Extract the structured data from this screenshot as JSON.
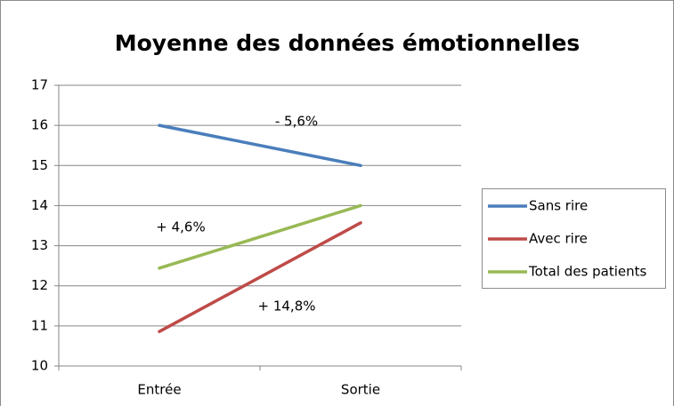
{
  "chart_data": {
    "type": "line",
    "title": "Moyenne des données émotionnelles",
    "categories": [
      "Entrée",
      "Sortie"
    ],
    "series": [
      {
        "name": "Sans rire",
        "color": "#4a7ebb",
        "values": [
          16,
          15
        ]
      },
      {
        "name": "Avec rire",
        "color": "#be4b48",
        "values": [
          10.86,
          13.57
        ]
      },
      {
        "name": "Total des patients",
        "color": "#98b954",
        "values": [
          12.44,
          14
        ]
      }
    ],
    "annotations": [
      "- 5,6%",
      "+ 4,6%",
      "+ 14,8%"
    ],
    "ylim": [
      10,
      17
    ],
    "yticks": [
      10,
      11,
      12,
      13,
      14,
      15,
      16,
      17
    ],
    "grid": true,
    "legend": "right"
  }
}
